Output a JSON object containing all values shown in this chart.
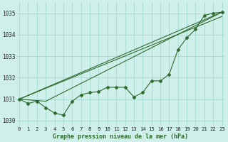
{
  "x": [
    0,
    1,
    2,
    3,
    4,
    5,
    6,
    7,
    8,
    9,
    10,
    11,
    12,
    13,
    14,
    15,
    16,
    17,
    18,
    19,
    20,
    21,
    22,
    23
  ],
  "series_main": [
    1031.0,
    1030.8,
    1030.9,
    1030.6,
    1030.35,
    1030.25,
    1030.9,
    1031.2,
    1031.3,
    1031.35,
    1031.55,
    1031.55,
    1031.55,
    1031.1,
    1031.3,
    1031.85,
    1031.85,
    1032.15,
    1033.3,
    1033.85,
    1034.25,
    1034.9,
    1035.0,
    1035.05
  ],
  "line2_x": [
    0,
    3,
    23
  ],
  "line2_y": [
    1031.0,
    1030.9,
    1035.05
  ],
  "line3_x": [
    0,
    3,
    23
  ],
  "line3_y": [
    1031.0,
    1030.9,
    1035.05
  ],
  "straight_line_x": [
    0,
    23
  ],
  "straight_line_y": [
    1031.0,
    1035.05
  ],
  "ylim": [
    1029.75,
    1035.5
  ],
  "xlim": [
    -0.3,
    23.3
  ],
  "yticks": [
    1030,
    1031,
    1032,
    1033,
    1034,
    1035
  ],
  "xticks": [
    0,
    1,
    2,
    3,
    4,
    5,
    6,
    7,
    8,
    9,
    10,
    11,
    12,
    13,
    14,
    15,
    16,
    17,
    18,
    19,
    20,
    21,
    22,
    23
  ],
  "xlabel": "Graphe pression niveau de la mer (hPa)",
  "line_color": "#2d6a2d",
  "bg_color": "#cff0ea",
  "grid_color": "#9dd4ca",
  "marker": "D",
  "marker_size": 2.5
}
